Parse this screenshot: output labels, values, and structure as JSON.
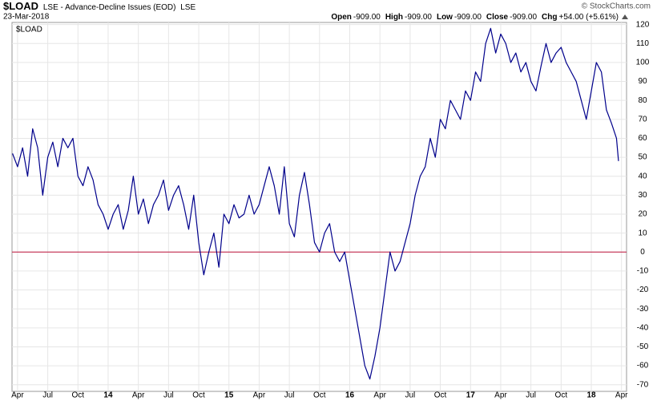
{
  "chart_data": {
    "type": "line",
    "title": "$LOAD",
    "description": "LSE - Advance-Decline Issues (EOD)",
    "exchange": "LSE",
    "date": "23-Mar-2018",
    "quote": [
      {
        "label": "Open",
        "value": "-909.00"
      },
      {
        "label": "High",
        "value": "-909.00"
      },
      {
        "label": "Low",
        "value": "-909.00"
      },
      {
        "label": "Close",
        "value": "-909.00"
      },
      {
        "label": "Chg",
        "value": "+54.00 (+5.61%)"
      }
    ],
    "credit": "© StockCharts.com",
    "x": [
      -0.5,
      0,
      0.5,
      1,
      1.5,
      2,
      2.5,
      3,
      3.5,
      4,
      4.5,
      5,
      5.5,
      6,
      6.5,
      7,
      7.5,
      8,
      8.5,
      9,
      9.5,
      10,
      10.5,
      11,
      11.5,
      12,
      12.5,
      13,
      13.5,
      14,
      14.5,
      15,
      15.5,
      16,
      16.5,
      17,
      17.5,
      18,
      18.5,
      19,
      19.5,
      20,
      20.5,
      21,
      21.5,
      22,
      22.5,
      23,
      23.5,
      24,
      24.5,
      25,
      25.5,
      26,
      26.5,
      27,
      27.5,
      28,
      28.5,
      29,
      29.5,
      30,
      30.5,
      31,
      31.5,
      32,
      32.5,
      33,
      33.5,
      34,
      34.5,
      35,
      35.5,
      36,
      36.5,
      37,
      37.5,
      38,
      38.5,
      39,
      39.5,
      40,
      40.5,
      41,
      41.5,
      42,
      42.5,
      43,
      43.5,
      44,
      44.5,
      45,
      45.5,
      46,
      46.5,
      47,
      47.5,
      48,
      48.5,
      49,
      49.5,
      50,
      50.5,
      51,
      51.5,
      52,
      52.5,
      53,
      53.5,
      54,
      54.5,
      55,
      55.5,
      56,
      56.5,
      57,
      57.5,
      58,
      58.5,
      59,
      59.5,
      59.7
    ],
    "series": [
      {
        "name": "$LOAD",
        "color": "#00008b",
        "values": [
          52,
          45,
          55,
          40,
          65,
          55,
          30,
          50,
          58,
          45,
          60,
          55,
          60,
          40,
          35,
          45,
          38,
          25,
          20,
          12,
          20,
          25,
          12,
          22,
          40,
          20,
          28,
          15,
          25,
          30,
          38,
          22,
          30,
          35,
          25,
          12,
          30,
          5,
          -12,
          0,
          10,
          -8,
          20,
          15,
          25,
          18,
          20,
          30,
          20,
          25,
          35,
          45,
          35,
          20,
          45,
          15,
          8,
          30,
          42,
          25,
          5,
          0,
          10,
          15,
          0,
          -5,
          0,
          -15,
          -30,
          -45,
          -60,
          -67,
          -55,
          -40,
          -20,
          0,
          -10,
          -5,
          5,
          15,
          30,
          40,
          45,
          60,
          50,
          70,
          65,
          80,
          75,
          70,
          85,
          80,
          95,
          90,
          110,
          118,
          105,
          115,
          110,
          100,
          105,
          95,
          100,
          90,
          85,
          98,
          110,
          100,
          105,
          108,
          100,
          95,
          90,
          80,
          70,
          85,
          100,
          95,
          75,
          68,
          60,
          48
        ]
      }
    ],
    "xlim": [
      -0.55,
      60.5
    ],
    "xticks": [
      {
        "value": 0,
        "label": "Apr"
      },
      {
        "value": 3,
        "label": "Jul"
      },
      {
        "value": 6,
        "label": "Oct"
      },
      {
        "value": 9,
        "label": "14"
      },
      {
        "value": 12,
        "label": "Apr"
      },
      {
        "value": 15,
        "label": "Jul"
      },
      {
        "value": 18,
        "label": "Oct"
      },
      {
        "value": 21,
        "label": "15"
      },
      {
        "value": 24,
        "label": "Apr"
      },
      {
        "value": 27,
        "label": "Jul"
      },
      {
        "value": 30,
        "label": "Oct"
      },
      {
        "value": 33,
        "label": "16"
      },
      {
        "value": 36,
        "label": "Apr"
      },
      {
        "value": 39,
        "label": "Jul"
      },
      {
        "value": 42,
        "label": "Oct"
      },
      {
        "value": 45,
        "label": "17"
      },
      {
        "value": 48,
        "label": "Apr"
      },
      {
        "value": 51,
        "label": "Jul"
      },
      {
        "value": 54,
        "label": "Oct"
      },
      {
        "value": 57,
        "label": "18"
      },
      {
        "value": 60,
        "label": "Apr"
      }
    ],
    "ylim": [
      -73.5,
      124.5
    ],
    "yticks": [
      -70,
      -60,
      -50,
      -40,
      -30,
      -20,
      -10,
      0,
      10,
      20,
      30,
      40,
      50,
      60,
      70,
      80,
      90,
      100,
      110,
      120
    ],
    "grid": true,
    "reference_line": {
      "value": 0,
      "color": "#c0143c"
    }
  }
}
